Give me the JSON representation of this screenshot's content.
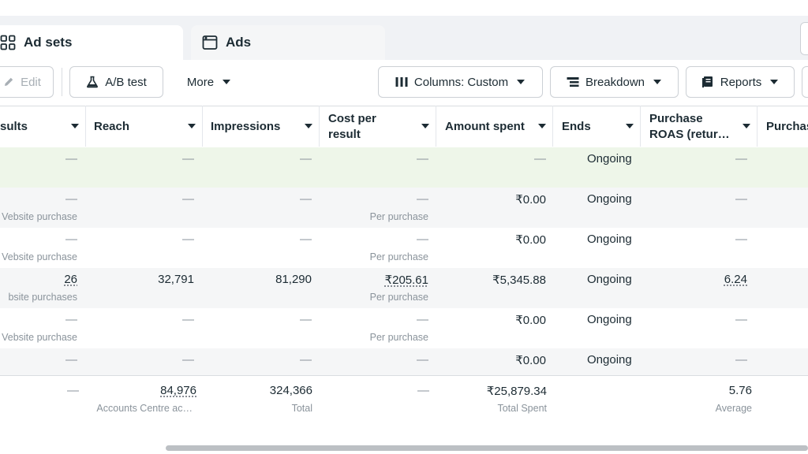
{
  "tabs": [
    {
      "label": "Ad sets"
    },
    {
      "label": "Ads"
    }
  ],
  "toolbar": {
    "edit": "Edit",
    "ab_test": "A/B test",
    "more": "More",
    "columns": "Columns: Custom",
    "breakdown": "Breakdown",
    "reports": "Reports"
  },
  "columns": [
    {
      "label": "sults"
    },
    {
      "label": "Reach"
    },
    {
      "label": "Impressions"
    },
    {
      "label": "Cost per result"
    },
    {
      "label": "Amount spent"
    },
    {
      "label": "Ends"
    },
    {
      "label": "Purchase ROAS (retur…"
    },
    {
      "label": "Purchas"
    }
  ],
  "rows": [
    {
      "results": "—",
      "results_sub": "",
      "reach": "—",
      "impressions": "—",
      "cost": "—",
      "cost_sub": "",
      "amount": "—",
      "ends": "Ongoing",
      "roas": "—"
    },
    {
      "results": "—",
      "results_sub": "Vebsite purchase",
      "reach": "—",
      "impressions": "—",
      "cost": "—",
      "cost_sub": "Per purchase",
      "amount": "₹0.00",
      "ends": "Ongoing",
      "roas": "—"
    },
    {
      "results": "—",
      "results_sub": "Vebsite purchase",
      "reach": "—",
      "impressions": "—",
      "cost": "—",
      "cost_sub": "Per purchase",
      "amount": "₹0.00",
      "ends": "Ongoing",
      "roas": "—"
    },
    {
      "results": "26",
      "results_sub": "bsite purchases",
      "reach": "32,791",
      "impressions": "81,290",
      "cost": "₹205.61",
      "cost_sub": "Per purchase",
      "amount": "₹5,345.88",
      "ends": "Ongoing",
      "roas": "6.24"
    },
    {
      "results": "—",
      "results_sub": "Vebsite purchase",
      "reach": "—",
      "impressions": "—",
      "cost": "—",
      "cost_sub": "Per purchase",
      "amount": "₹0.00",
      "ends": "Ongoing",
      "roas": "—"
    },
    {
      "results": "—",
      "results_sub": "",
      "reach": "—",
      "impressions": "—",
      "cost": "—",
      "cost_sub": "",
      "amount": "₹0.00",
      "ends": "Ongoing",
      "roas": "—"
    }
  ],
  "totals": {
    "results": "—",
    "reach": "84,976",
    "reach_sub": "Accounts Centre ac…",
    "impressions": "324,366",
    "impressions_sub": "Total",
    "cost": "—",
    "amount": "₹25,879.34",
    "amount_sub": "Total Spent",
    "roas": "5.76",
    "roas_sub": "Average"
  }
}
